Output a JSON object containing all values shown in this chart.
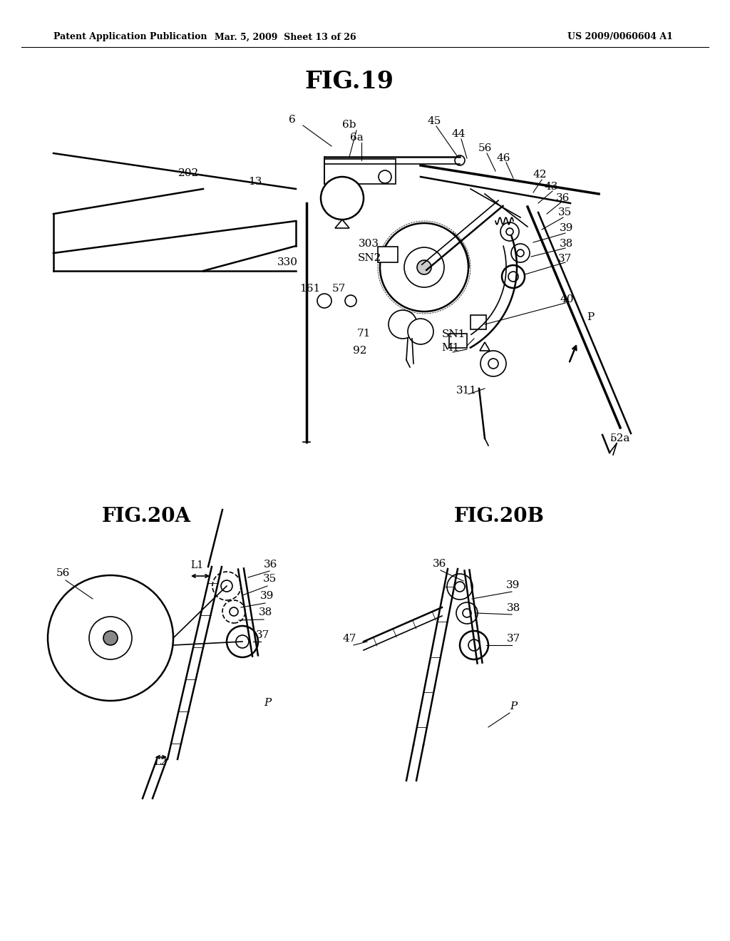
{
  "background_color": "#ffffff",
  "header_left": "Patent Application Publication",
  "header_mid": "Mar. 5, 2009  Sheet 13 of 26",
  "header_right": "US 2009/0060604 A1",
  "fig19_title": "FIG.19",
  "fig20a_title": "FIG.20A",
  "fig20b_title": "FIG.20B"
}
